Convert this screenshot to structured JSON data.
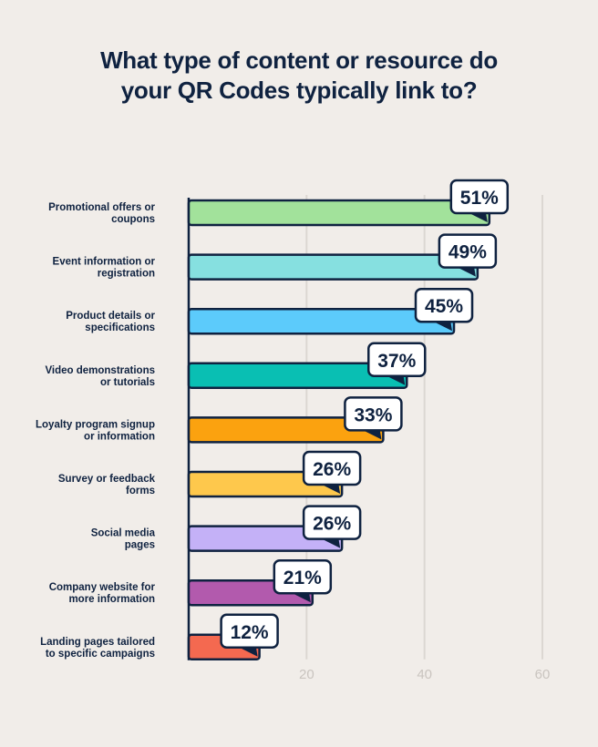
{
  "chart_data": {
    "type": "bar",
    "orientation": "horizontal",
    "title": "What type of content or resource do your QR Codes typically link to?",
    "title_lines": [
      "What type of content or resource do",
      "your QR Codes typically link to?"
    ],
    "categories": [
      [
        "Promotional offers or",
        "coupons"
      ],
      [
        "Event information or",
        "registration"
      ],
      [
        "Product details or",
        "specifications"
      ],
      [
        "Video demonstrations",
        "or tutorials"
      ],
      [
        "Loyalty program signup",
        "or information"
      ],
      [
        "Survey or feedback",
        "forms"
      ],
      [
        "Social media",
        "pages"
      ],
      [
        "Company website for",
        "more information"
      ],
      [
        "Landing pages tailored",
        "to specific campaigns"
      ]
    ],
    "values": [
      51,
      49,
      45,
      37,
      33,
      26,
      26,
      21,
      12
    ],
    "data_labels": [
      "51%",
      "49%",
      "45%",
      "37%",
      "33%",
      "26%",
      "26%",
      "21%",
      "12%"
    ],
    "colors": [
      "#a2e29b",
      "#86e0e0",
      "#5ccbfb",
      "#09bfb3",
      "#fba20f",
      "#fec84c",
      "#c4b1f7",
      "#b25aad",
      "#f46950"
    ],
    "xlim": [
      0,
      60
    ],
    "xticks": [
      20,
      40,
      60
    ],
    "grid": true,
    "outline_color": "#0f2240",
    "background": "#f1ede9"
  }
}
